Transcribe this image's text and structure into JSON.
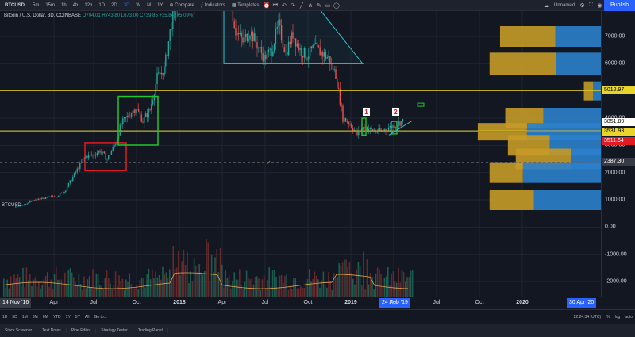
{
  "toolbar": {
    "symbol": "BTCUSD",
    "intervals": [
      "5m",
      "15m",
      "1h",
      "4h",
      "12h",
      "1D",
      "2D",
      "3D",
      "W",
      "M",
      "1Y"
    ],
    "compare": "Compare",
    "indicators": "Indicators",
    "templates": "Templates",
    "layout_name": "Unnamed",
    "publish": "Publish"
  },
  "legend": {
    "title": "Bitcoin / U.S. Dollar, 3D, COINBASE",
    "ohlc": "O704.01 H743.80 L673.00 C739.85 +35.84 (+5.09%)"
  },
  "chart_data": {
    "type": "candlestick",
    "symbol": "BTCUSD",
    "interval": "3D",
    "exchange": "COINBASE",
    "price_axis": {
      "min": -2500,
      "max": 7800,
      "ticks": [
        7000,
        6000,
        5000,
        4000,
        3000,
        2000,
        1000,
        0,
        -1000,
        -2000
      ],
      "tick_labels": [
        "7000.00",
        "6000.00",
        "5000.00",
        "4000.00",
        "3000.00",
        "2000.00",
        "1000.00",
        "0.00",
        "-1000.00",
        "-2000.00"
      ]
    },
    "time_axis": {
      "labels": [
        "Apr",
        "Jul",
        "Oct",
        "2018",
        "Apr",
        "Jul",
        "Oct",
        "2019",
        "Apr",
        "Jul",
        "Oct",
        "2020"
      ]
    },
    "price_path": [
      [
        0,
        720
      ],
      [
        1.5,
        1000
      ],
      [
        3,
        1150
      ],
      [
        3.5,
        1300
      ],
      [
        4,
        1750
      ],
      [
        4.5,
        2200
      ],
      [
        5,
        2600
      ],
      [
        5.5,
        2650
      ],
      [
        6,
        2800
      ],
      [
        6.5,
        2500
      ],
      [
        7,
        3000
      ],
      [
        7.5,
        3800
      ],
      [
        8,
        4100
      ],
      [
        8.5,
        4400
      ],
      [
        9,
        3900
      ],
      [
        9.5,
        4300
      ],
      [
        10,
        5500
      ],
      [
        10.5,
        5800
      ],
      [
        11,
        7500
      ],
      [
        11.5,
        8500
      ],
      [
        12,
        9000
      ],
      [
        12.5,
        8200
      ],
      [
        13,
        9200
      ],
      [
        13.5,
        11000
      ],
      [
        14,
        9800
      ],
      [
        14.5,
        8900
      ],
      [
        15,
        8600
      ],
      [
        15.5,
        7200
      ],
      [
        16,
        6800
      ],
      [
        16.5,
        7200
      ],
      [
        17,
        6700
      ],
      [
        17.5,
        6200
      ],
      [
        18,
        6500
      ],
      [
        18.5,
        7400
      ],
      [
        19,
        6400
      ],
      [
        19.5,
        7100
      ],
      [
        20,
        6500
      ],
      [
        20.5,
        6300
      ],
      [
        21,
        6600
      ],
      [
        21.5,
        6400
      ],
      [
        22,
        6200
      ],
      [
        22.5,
        5600
      ],
      [
        23,
        4000
      ],
      [
        23.5,
        3800
      ],
      [
        24,
        3400
      ],
      [
        24.5,
        3700
      ],
      [
        25,
        3550
      ],
      [
        25.5,
        3500
      ],
      [
        26,
        3600
      ],
      [
        26.5,
        3700
      ],
      [
        27,
        3850
      ],
      [
        27.3,
        3900
      ]
    ],
    "horizontal_lines": [
      {
        "price": 5012.97,
        "label": "5012.97",
        "color": "#e8d42a"
      },
      {
        "price": 3531.93,
        "label": "3531.93",
        "color": "#e8d42a"
      },
      {
        "price": 3511.64,
        "label": "3511.64",
        "color": "#f23645"
      }
    ],
    "price_labels": [
      {
        "price": 3851.89,
        "label": "3851.89"
      },
      {
        "price": 2387.3,
        "label": "2387.30"
      }
    ],
    "annotations": [
      {
        "text": "1"
      },
      {
        "text": "2"
      }
    ],
    "volume_profile": {
      "price_levels": [
        7000,
        6000,
        5000,
        4000,
        3500,
        3000,
        2500,
        2000,
        1000
      ],
      "total": [
        77,
        85,
        13,
        73,
        94,
        71,
        65,
        85,
        85
      ],
      "buy_share": [
        0.45,
        0.4,
        0.45,
        0.6,
        0.6,
        0.55,
        0.35,
        0.7,
        0.6
      ]
    },
    "volume_bars": "present (per-candle volume histogram at bottom)",
    "colors": {
      "up": "#26a69a",
      "down": "#ef5350",
      "profile_buy": "#2b7fcb",
      "profile_sell": "#c59a26",
      "rect_green": "#22c32e",
      "rect_red": "#e01b24",
      "triangle": "#2bc4cc"
    }
  },
  "xaxis": {
    "start_badge": "14 Nov '16",
    "cursor_badge": "24 Feb '19",
    "end_badge": "30 Apr '20",
    "labels": [
      "Apr",
      "Jul",
      "Oct",
      "2018",
      "Apr",
      "Jul",
      "Oct",
      "2019",
      "Apr",
      "Jul",
      "Oct",
      "2020"
    ]
  },
  "ranges": [
    "1D",
    "5D",
    "1M",
    "3M",
    "6M",
    "YTD",
    "1Y",
    "5Y",
    "All",
    "Go to..."
  ],
  "status": {
    "clock": "22:24:34 (UTC)",
    "scale": [
      "%",
      "log",
      "auto"
    ]
  },
  "panel_tabs": [
    "Stock Screener",
    "Text Notes",
    "Pine Editor",
    "Strategy Tester",
    "Trading Panel"
  ]
}
